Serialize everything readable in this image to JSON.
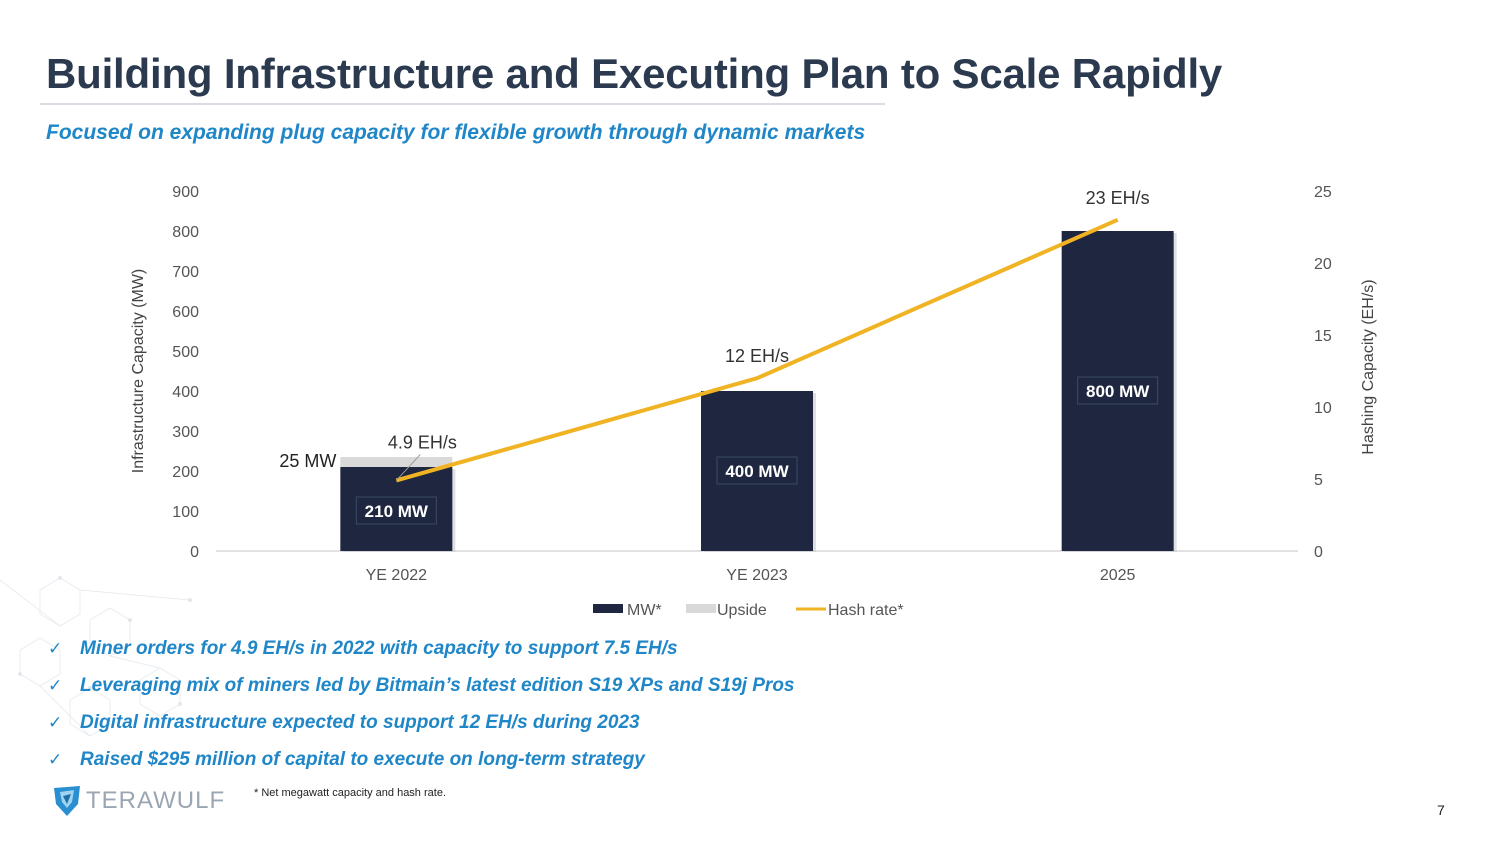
{
  "slide": {
    "title": "Building Infrastructure and Executing Plan to Scale Rapidly",
    "subtitle": "Focused on expanding plug capacity for flexible growth through dynamic markets",
    "bullets": [
      "Miner orders for 4.9 EH/s in 2022 with capacity to support 7.5 EH/s",
      "Leveraging mix of miners led by Bitmain’s latest edition S19 XPs and S19j Pros",
      "Digital infrastructure expected to support 12 EH/s during 2023",
      "Raised $295 million of capital to execute on long-term strategy"
    ],
    "check_glyph": "✓",
    "footnote": "* Net megawatt capacity and hash rate.",
    "logo_text": "TERAWULF",
    "page_number": "7"
  },
  "chart_data": {
    "type": "bar",
    "categories": [
      "YE 2022",
      "YE 2023",
      "2025"
    ],
    "series": [
      {
        "name": "MW*",
        "type": "bar",
        "axis": "left",
        "values": [
          210,
          400,
          800
        ],
        "color": "#1f2640"
      },
      {
        "name": "Upside",
        "type": "bar",
        "axis": "left",
        "stacked": true,
        "values": [
          25,
          0,
          0
        ],
        "color": "#d9d9d9"
      },
      {
        "name": "Hash rate*",
        "type": "line",
        "axis": "right",
        "values": [
          4.9,
          12,
          23
        ],
        "color": "#f0b323"
      }
    ],
    "bar_labels": [
      "210 MW",
      "400 MW",
      "800 MW"
    ],
    "upside_label": "25 MW",
    "line_labels": [
      "4.9 EH/s",
      "12 EH/s",
      "23 EH/s"
    ],
    "ylabel": "Infrastructure Capacity (MW)",
    "y2label": "Hashing Capacity (EH/s)",
    "ylim": [
      0,
      900
    ],
    "y2lim": [
      0,
      25
    ],
    "yticks": [
      0,
      100,
      200,
      300,
      400,
      500,
      600,
      700,
      800,
      900
    ],
    "y2ticks": [
      0,
      5,
      10,
      15,
      20,
      25
    ],
    "legend_position": "bottom",
    "grid": false
  }
}
